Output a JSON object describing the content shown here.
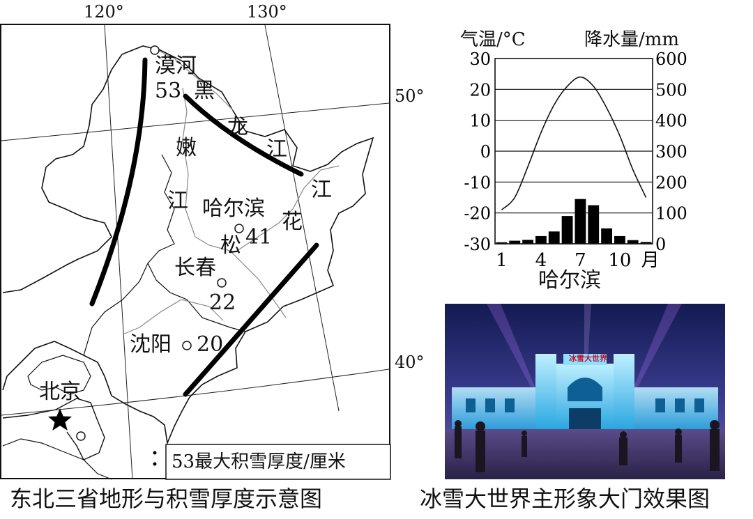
{
  "map": {
    "coordinates": {
      "lon120": "120°",
      "lon130": "130°",
      "lat50": "50°",
      "lat40": "40°"
    },
    "cities": {
      "mohe": {
        "name": "漠河",
        "value": "53"
      },
      "harbin": {
        "name": "哈尔滨",
        "value": "41"
      },
      "changchun": {
        "name": "长春",
        "value": "22"
      },
      "shenyang": {
        "name": "沈阳",
        "value": "20"
      },
      "beijing": {
        "name": "北京"
      }
    },
    "rivers": {
      "heilongjiang": [
        "黑",
        "龙",
        "江"
      ],
      "nenjiang": [
        "嫩",
        "江"
      ],
      "songhuajiang": [
        "松",
        "花",
        "江"
      ]
    },
    "legend": "53最大积雪厚度/厘米",
    "caption": "东北三省地形与积雪厚度示意图"
  },
  "chart_data": {
    "type": "bar+line",
    "title": "哈尔滨",
    "categories": [
      "1",
      "2",
      "3",
      "4",
      "5",
      "6",
      "7",
      "8",
      "9",
      "10",
      "11",
      "12"
    ],
    "xlabel_ticks": [
      "1",
      "4",
      "7",
      "10"
    ],
    "x_unit": "月",
    "series": [
      {
        "name": "气温/°C",
        "type": "line",
        "axis": "left",
        "values": [
          -19,
          -15,
          -5,
          6,
          15,
          21,
          24,
          21,
          14,
          5,
          -6,
          -15
        ]
      },
      {
        "name": "降水量/mm",
        "type": "bar",
        "axis": "right",
        "values": [
          5,
          10,
          13,
          25,
          40,
          90,
          145,
          125,
          50,
          25,
          12,
          6
        ]
      }
    ],
    "left_axis": {
      "label": "气温/°C",
      "range": [
        -30,
        30
      ],
      "ticks": [
        "30",
        "20",
        "10",
        "0",
        "-10",
        "-20",
        "-30"
      ]
    },
    "right_axis": {
      "label": "降水量/mm",
      "range": [
        0,
        600
      ],
      "ticks": [
        "600",
        "500",
        "400",
        "300",
        "200",
        "100",
        "0"
      ]
    },
    "grid": true
  },
  "photo": {
    "sign": "冰雪大世界",
    "caption": "冰雪大世界主形象大门效果图"
  }
}
